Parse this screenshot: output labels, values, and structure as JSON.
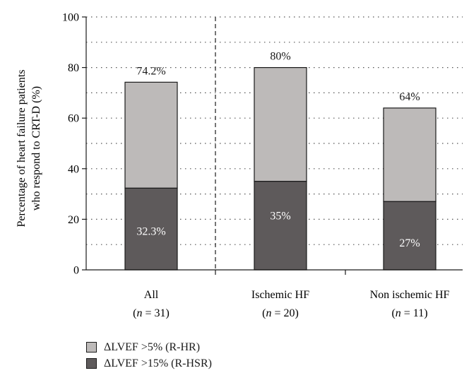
{
  "chart_data": {
    "type": "bar",
    "stacked": true,
    "ylabel": "Percentage of heart failure patients who respond to CRT-D (%)",
    "ylim": [
      0,
      100
    ],
    "yticks": [
      0,
      20,
      40,
      60,
      80,
      100
    ],
    "grid": "dotted horizontal",
    "categories": [
      {
        "name": "All",
        "n": "31"
      },
      {
        "name": "Ischemic HF",
        "n": "20"
      },
      {
        "name": "Non ischemic HF",
        "n": "11"
      }
    ],
    "series": [
      {
        "name": "ΔLVEF >15% (R-HSR)",
        "color": "#5e5a5b",
        "values": [
          32.3,
          35,
          27
        ],
        "labels": [
          "32.3%",
          "35%",
          "27%"
        ]
      },
      {
        "name": "ΔLVEF >5% (R-HR)",
        "color": "#bdbab9",
        "totals": [
          74.2,
          80,
          64
        ],
        "labels": [
          "74.2%",
          "80%",
          "64%"
        ]
      }
    ],
    "legend_placement": "bottom-left"
  },
  "legend": [
    {
      "label": "ΔLVEF >5% (R-HR)",
      "color": "#bdbab9"
    },
    {
      "label": "ΔLVEF >15% (R-HSR)",
      "color": "#5e5a5b"
    }
  ]
}
